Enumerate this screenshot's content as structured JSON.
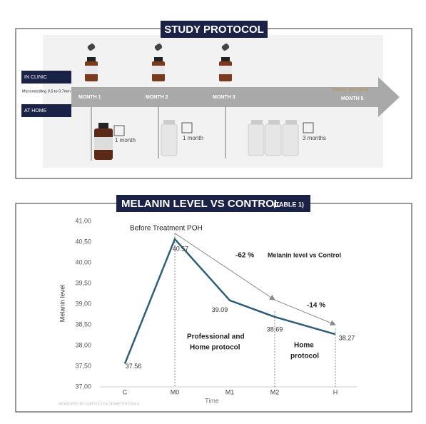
{
  "protocol": {
    "title": "STUDY PROTOCOL",
    "rows": [
      "IN CLINIC",
      "AT HOME"
    ],
    "clinic_note": "Microneedling 0.5 to 0.7mm",
    "months": [
      "MONTH 1",
      "MONTH 2",
      "MONTH 3"
    ],
    "final_review": "FINAL REVIEW",
    "final_month": "MONTH 5",
    "home_durations": [
      "1 month",
      "1 month",
      "3 months"
    ]
  },
  "chart_data": {
    "type": "line",
    "title": "MELANIN LEVEL VS CONTROL",
    "title_note": "(TABLE 1)",
    "y_label": "Melanin level",
    "x_label": "Time",
    "categories": [
      "C",
      "M0",
      "M1",
      "M2",
      "H"
    ],
    "series": [
      {
        "name": "Melanin level",
        "color": "#2f5f78",
        "values": [
          37.56,
          40.57,
          39.09,
          38.69,
          38.27
        ]
      },
      {
        "name": "Melanin level vs Control",
        "color": "#8a8a8a",
        "values": [
          null,
          40.71,
          null,
          39.1,
          38.5
        ]
      }
    ],
    "ylim": [
      37,
      41
    ],
    "yticks": [
      {
        "value": 37,
        "label": "37,00"
      },
      {
        "value": 37.5,
        "label": "37,50"
      },
      {
        "value": 38,
        "label": "38,00"
      },
      {
        "value": 38.5,
        "label": "38,50"
      },
      {
        "value": 39,
        "label": "39,00"
      },
      {
        "value": 39.5,
        "label": "39,50"
      },
      {
        "value": 40,
        "label": "40,00"
      },
      {
        "value": 40.5,
        "label": "40,50"
      },
      {
        "value": 41,
        "label": "41,00"
      }
    ],
    "annotations": [
      "Before Treatment POH",
      "-62 %",
      "-14 %"
    ],
    "phase_labels": [
      [
        "Professional and",
        "Home protocol"
      ],
      [
        "Home",
        "protocol"
      ]
    ],
    "footnote": "MEASURES BY CORTEX COLORIMETER DSM-II"
  }
}
